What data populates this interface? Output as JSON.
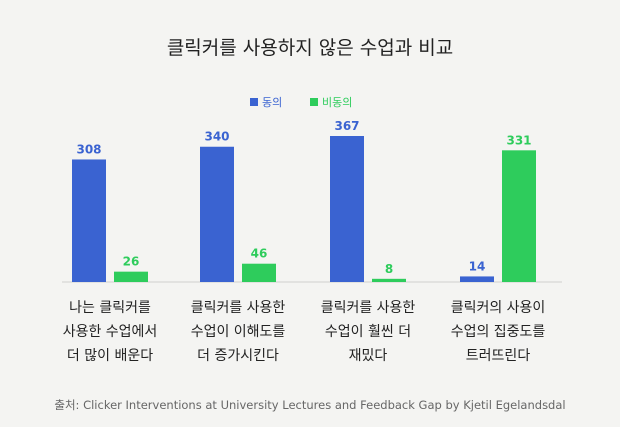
{
  "chart_data": {
    "type": "bar",
    "title": "클릭커를 사용하지 않은 수업과 비교",
    "categories": [
      [
        "나는 클릭커를",
        "사용한 수업에서",
        "더 많이 배운다"
      ],
      [
        "클릭커를 사용한",
        "수업이 이해도를",
        "더 증가시킨다"
      ],
      [
        "클릭커를 사용한",
        "수업이 훨씬 더",
        "재밌다"
      ],
      [
        "클릭커의 사용이",
        "수업의 집중도를",
        "트러뜨린다"
      ]
    ],
    "series": [
      {
        "name": "동의",
        "values": [
          308,
          340,
          367,
          14
        ],
        "color": "#3a63d1"
      },
      {
        "name": "비동의",
        "values": [
          26,
          46,
          8,
          331
        ],
        "color": "#2ecc5c"
      }
    ],
    "ylim": [
      0,
      367
    ],
    "grid": false,
    "legend": "top-center",
    "source": "출처: Clicker Interventions at University Lectures and Feedback Gap by Kjetil Egelandsdal"
  }
}
